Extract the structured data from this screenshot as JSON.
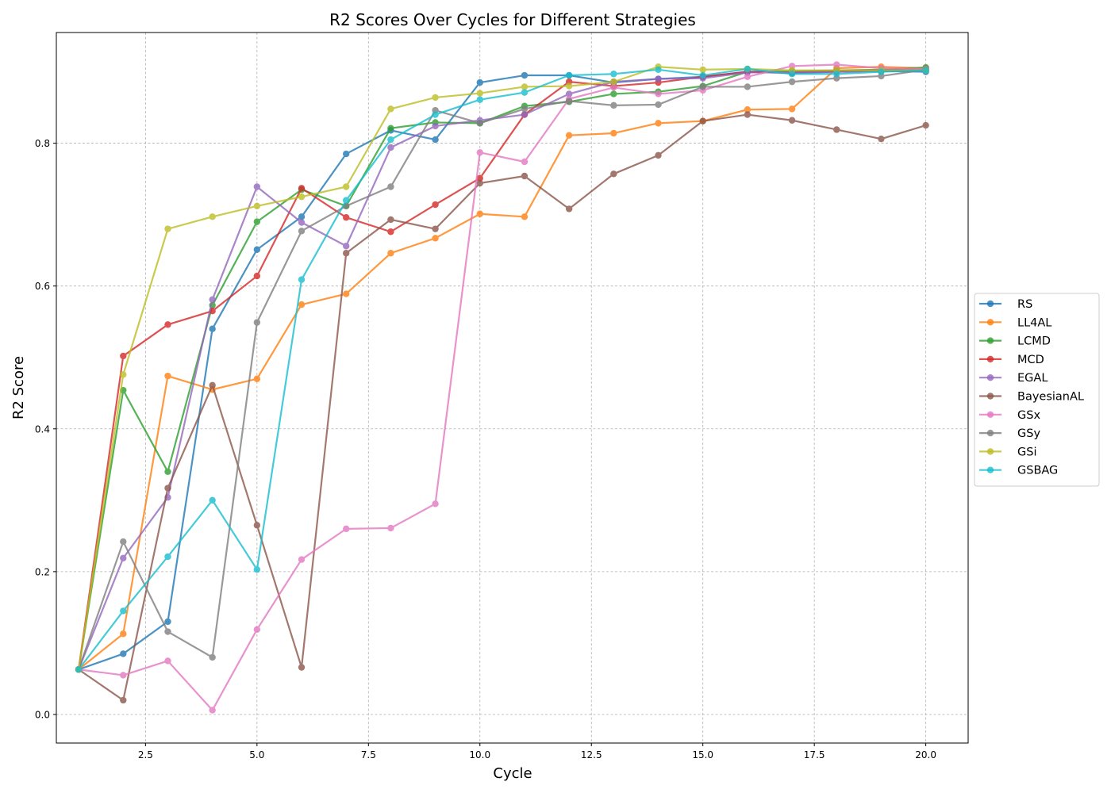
{
  "chart_data": {
    "type": "line",
    "title": "R2 Scores Over Cycles for Different Strategies",
    "xlabel": "Cycle",
    "ylabel": "R2 Score",
    "xlim": [
      0.5,
      20.95
    ],
    "ylim": [
      -0.04,
      0.955
    ],
    "xticks": [
      2.5,
      5.0,
      7.5,
      10.0,
      12.5,
      15.0,
      17.5,
      20.0
    ],
    "xtick_labels": [
      "2.5",
      "5.0",
      "7.5",
      "10.0",
      "12.5",
      "15.0",
      "17.5",
      "20.0"
    ],
    "yticks": [
      0.0,
      0.2,
      0.4,
      0.6,
      0.8
    ],
    "ytick_labels": [
      "0.0",
      "0.2",
      "0.4",
      "0.6",
      "0.8"
    ],
    "grid": true,
    "legend_position": "center right, outside plot",
    "x": [
      1,
      2,
      3,
      4,
      5,
      6,
      7,
      8,
      9,
      10,
      11,
      12,
      13,
      14,
      15,
      16,
      17,
      18,
      19,
      20
    ],
    "series": [
      {
        "name": "RS",
        "color": "#1f77b4",
        "values": [
          0.063,
          0.085,
          0.13,
          0.54,
          0.651,
          0.697,
          0.785,
          0.818,
          0.805,
          0.885,
          0.895,
          0.895,
          0.885,
          0.89,
          0.893,
          0.9,
          0.898,
          0.9,
          0.901,
          0.9
        ]
      },
      {
        "name": "LL4AL",
        "color": "#ff7f0e",
        "values": [
          0.063,
          0.113,
          0.474,
          0.455,
          0.47,
          0.574,
          0.589,
          0.646,
          0.667,
          0.701,
          0.697,
          0.811,
          0.814,
          0.828,
          0.831,
          0.847,
          0.848,
          0.905,
          0.907,
          0.905
        ]
      },
      {
        "name": "LCMD",
        "color": "#2ca02c",
        "values": [
          0.063,
          0.454,
          0.34,
          0.573,
          0.69,
          0.735,
          0.712,
          0.821,
          0.829,
          0.828,
          0.852,
          0.858,
          0.869,
          0.872,
          0.88,
          0.9,
          0.901,
          0.902,
          0.903,
          0.906
        ]
      },
      {
        "name": "MCD",
        "color": "#d62728",
        "values": [
          0.063,
          0.502,
          0.546,
          0.565,
          0.614,
          0.737,
          0.696,
          0.676,
          0.714,
          0.751,
          0.84,
          0.886,
          0.88,
          0.885,
          0.893,
          0.9,
          0.899,
          0.901,
          0.902,
          0.903
        ]
      },
      {
        "name": "EGAL",
        "color": "#9467bd",
        "values": [
          0.063,
          0.219,
          0.304,
          0.581,
          0.739,
          0.689,
          0.656,
          0.794,
          0.824,
          0.832,
          0.84,
          0.869,
          0.886,
          0.89,
          0.891,
          0.899,
          0.899,
          0.9,
          0.901,
          0.902
        ]
      },
      {
        "name": "BayesianAL",
        "color": "#8c564b",
        "values": [
          0.063,
          0.02,
          0.317,
          0.461,
          0.265,
          0.066,
          0.646,
          0.693,
          0.68,
          0.744,
          0.754,
          0.708,
          0.757,
          0.783,
          0.831,
          0.84,
          0.832,
          0.819,
          0.806,
          0.825
        ]
      },
      {
        "name": "GSx",
        "color": "#e377c2",
        "values": [
          0.063,
          0.055,
          0.075,
          0.006,
          0.119,
          0.217,
          0.26,
          0.261,
          0.295,
          0.787,
          0.774,
          0.862,
          0.878,
          0.869,
          0.874,
          0.893,
          0.908,
          0.91,
          0.905,
          0.904
        ]
      },
      {
        "name": "GSy",
        "color": "#7f7f7f",
        "values": [
          0.063,
          0.242,
          0.116,
          0.08,
          0.549,
          0.677,
          0.712,
          0.739,
          0.846,
          0.828,
          0.848,
          0.859,
          0.853,
          0.854,
          0.879,
          0.879,
          0.886,
          0.891,
          0.894,
          0.903
        ]
      },
      {
        "name": "GSi",
        "color": "#bcbd22",
        "values": [
          0.063,
          0.476,
          0.68,
          0.697,
          0.712,
          0.725,
          0.739,
          0.848,
          0.864,
          0.87,
          0.879,
          0.88,
          0.886,
          0.907,
          0.903,
          0.904,
          0.902,
          0.902,
          0.902,
          0.902
        ]
      },
      {
        "name": "GSBAG",
        "color": "#17becf",
        "values": [
          0.063,
          0.145,
          0.221,
          0.3,
          0.203,
          0.609,
          0.72,
          0.805,
          0.84,
          0.861,
          0.871,
          0.895,
          0.897,
          0.903,
          0.895,
          0.904,
          0.897,
          0.897,
          0.9,
          0.902
        ]
      }
    ]
  }
}
